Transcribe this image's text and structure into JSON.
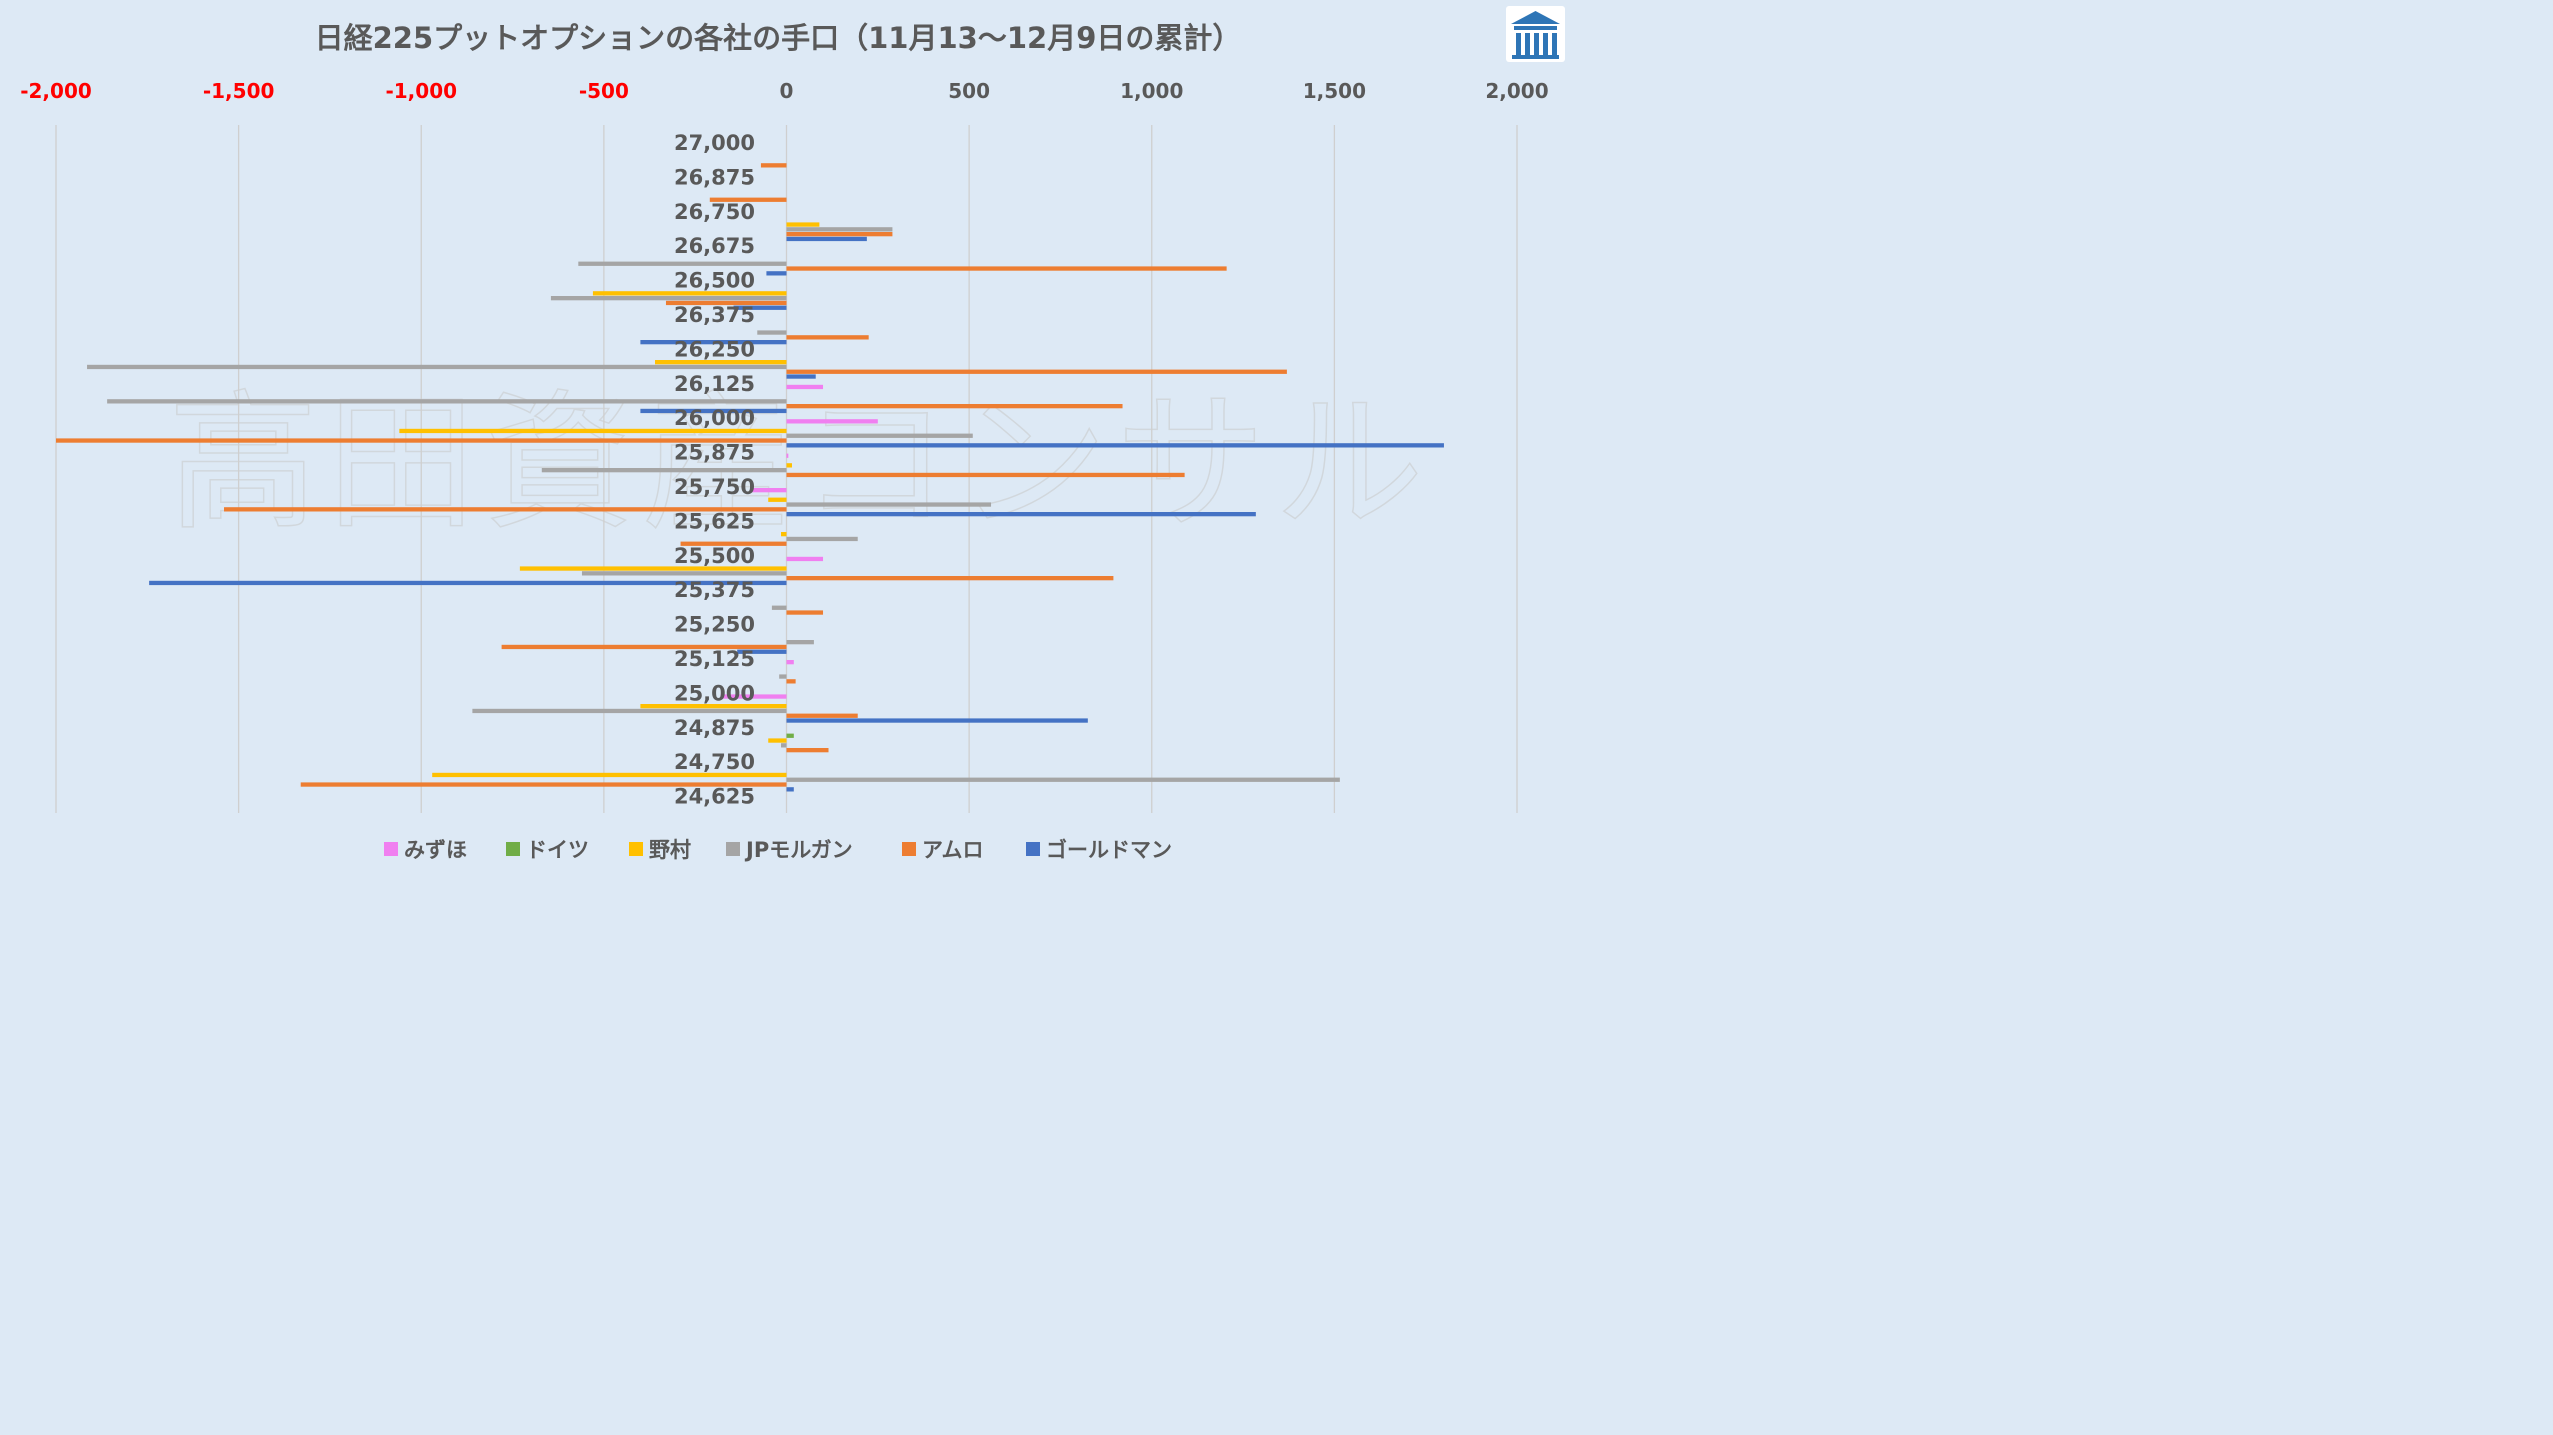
{
  "chart_data": {
    "type": "bar",
    "orientation": "horizontal",
    "title": "日経225プットオプションの各社の手口（11月13〜12月9日の累計）",
    "watermark": "高田資産コンサル",
    "xlim": [
      -2000,
      2000
    ],
    "x_ticks": [
      -2000,
      -1500,
      -1000,
      -500,
      0,
      500,
      1000,
      1500,
      2000
    ],
    "x_tick_labels": [
      "-2,000",
      "-1,500",
      "-1,000",
      "-500",
      "0",
      "500",
      "1,000",
      "1,500",
      "2,000"
    ],
    "negative_tick_color": "#ff0000",
    "positive_tick_color": "#595959",
    "categories": [
      "27,000",
      "26,875",
      "26,750",
      "26,675",
      "26,500",
      "26,375",
      "26,250",
      "26,125",
      "26,000",
      "25,875",
      "25,750",
      "25,625",
      "25,500",
      "25,375",
      "25,250",
      "25,125",
      "25,000",
      "24,875",
      "24,750",
      "24,625"
    ],
    "series": [
      {
        "name": "みずほ",
        "color": "#f07ff0",
        "values": [
          0,
          0,
          0,
          0,
          0,
          0,
          0,
          100,
          250,
          5,
          -95,
          0,
          100,
          0,
          0,
          20,
          -180,
          0,
          0,
          0
        ]
      },
      {
        "name": "ドイツ",
        "color": "#70ad47",
        "values": [
          0,
          0,
          0,
          0,
          0,
          0,
          0,
          0,
          0,
          0,
          0,
          0,
          0,
          0,
          0,
          0,
          0,
          20,
          0,
          0
        ]
      },
      {
        "name": "野村",
        "color": "#ffc000",
        "values": [
          0,
          0,
          90,
          0,
          -530,
          0,
          -360,
          0,
          -1060,
          15,
          -50,
          -15,
          -730,
          0,
          0,
          0,
          -400,
          -50,
          -970,
          0
        ]
      },
      {
        "name": "JPモルガン",
        "color": "#a5a5a5",
        "values": [
          0,
          0,
          290,
          -570,
          -645,
          -80,
          -1915,
          -1860,
          510,
          -670,
          560,
          195,
          -560,
          -40,
          75,
          -20,
          -860,
          -15,
          1515,
          0
        ]
      },
      {
        "name": "アムロ",
        "color": "#ed7d31",
        "values": [
          -70,
          -210,
          290,
          1205,
          -330,
          225,
          1370,
          920,
          -2000,
          1090,
          -1540,
          -290,
          895,
          100,
          -780,
          25,
          195,
          115,
          -1330,
          0
        ]
      },
      {
        "name": "ゴールドマン",
        "color": "#4472c4",
        "values": [
          0,
          0,
          220,
          -55,
          -145,
          -400,
          80,
          -400,
          1800,
          0,
          1285,
          0,
          -1745,
          0,
          -135,
          0,
          825,
          0,
          20,
          0
        ]
      }
    ],
    "legend_position": "bottom"
  },
  "logo": {
    "name": "site-logo",
    "color": "#2e75b6"
  }
}
